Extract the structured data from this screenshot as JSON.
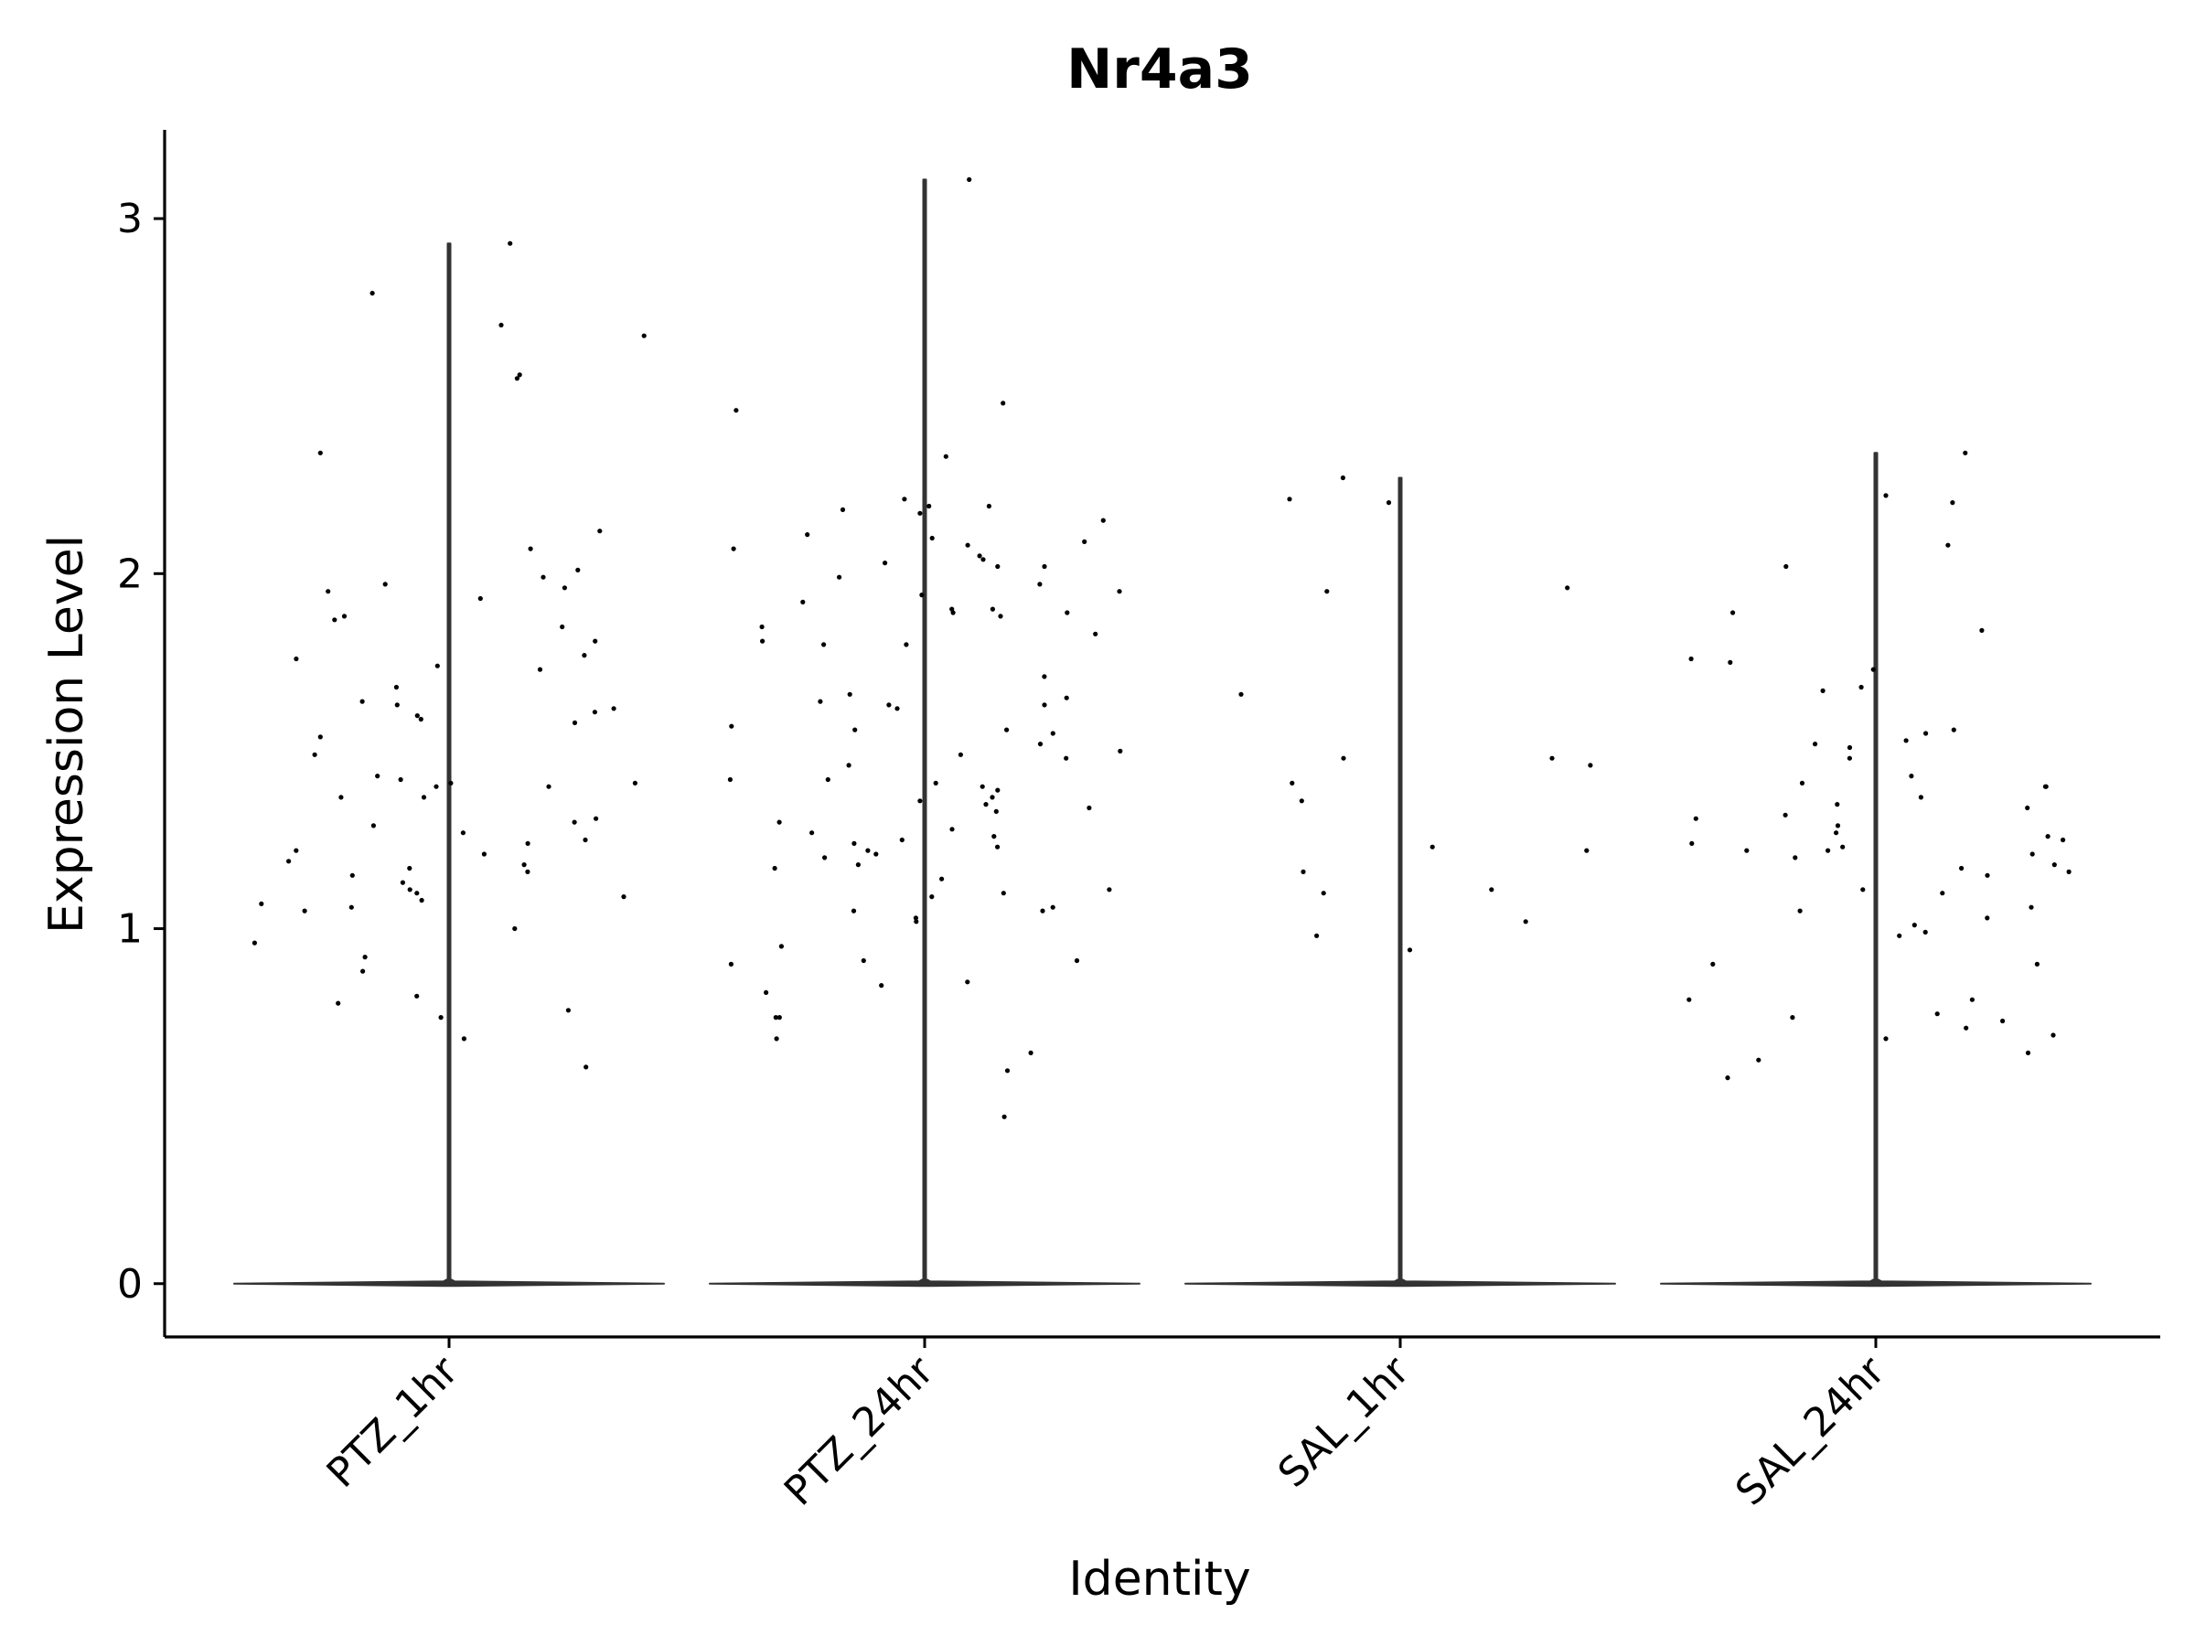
{
  "chart_data": {
    "type": "violin",
    "title": "Nr4a3",
    "xlabel": "Identity",
    "ylabel": "Expression Level",
    "categories": [
      "PTZ_1hr",
      "PTZ_24hr",
      "SAL_1hr",
      "SAL_24hr"
    ],
    "ylim": [
      -0.15,
      3.25
    ],
    "yticks": [
      0,
      1,
      2,
      3
    ],
    "grid": false,
    "legend": "none",
    "colors": {
      "ink": "#000000",
      "violin": "#333333"
    },
    "max_values": [
      2.93,
      3.11,
      2.27,
      2.34
    ],
    "points": [
      {
        "category": "PTZ_1hr",
        "values": [
          2.93,
          2.79,
          2.7,
          2.67,
          2.56,
          2.55,
          2.34,
          2.12,
          2.07,
          2.01,
          1.99,
          1.97,
          1.96,
          1.95,
          1.93,
          1.88,
          1.87,
          1.85,
          1.81,
          1.77,
          1.76,
          1.74,
          1.73,
          1.68,
          1.64,
          1.63,
          1.62,
          1.61,
          1.6,
          1.59,
          1.58,
          1.54,
          1.49,
          1.43,
          1.42,
          1.41,
          1.41,
          1.4,
          1.4,
          1.37,
          1.37,
          1.31,
          1.3,
          1.29,
          1.27,
          1.25,
          1.24,
          1.22,
          1.21,
          1.19,
          1.18,
          1.17,
          1.16,
          1.15,
          1.13,
          1.11,
          1.1,
          1.09,
          1.08,
          1.07,
          1.06,
          1.05,
          1.0,
          0.96,
          0.92,
          0.88,
          0.81,
          0.79,
          0.77,
          0.75,
          0.69,
          0.61
        ]
      },
      {
        "category": "PTZ_24hr",
        "values": [
          3.11,
          2.48,
          2.46,
          2.33,
          2.21,
          2.19,
          2.19,
          2.18,
          2.17,
          2.15,
          2.11,
          2.1,
          2.09,
          2.08,
          2.07,
          2.05,
          2.04,
          2.03,
          2.02,
          2.02,
          1.99,
          1.97,
          1.95,
          1.94,
          1.92,
          1.9,
          1.9,
          1.89,
          1.89,
          1.88,
          1.85,
          1.83,
          1.81,
          1.8,
          1.8,
          1.71,
          1.66,
          1.65,
          1.64,
          1.63,
          1.63,
          1.62,
          1.57,
          1.56,
          1.56,
          1.55,
          1.52,
          1.5,
          1.49,
          1.48,
          1.46,
          1.42,
          1.42,
          1.41,
          1.4,
          1.39,
          1.37,
          1.36,
          1.35,
          1.34,
          1.33,
          1.3,
          1.28,
          1.27,
          1.26,
          1.25,
          1.24,
          1.23,
          1.22,
          1.21,
          1.2,
          1.18,
          1.17,
          1.14,
          1.11,
          1.1,
          1.09,
          1.06,
          1.05,
          1.05,
          1.03,
          1.02,
          0.95,
          0.91,
          0.91,
          0.9,
          0.85,
          0.84,
          0.82,
          0.75,
          0.75,
          0.69,
          0.65,
          0.6,
          0.47
        ]
      },
      {
        "category": "SAL_1hr",
        "values": [
          2.27,
          2.21,
          2.2,
          1.96,
          1.95,
          1.66,
          1.48,
          1.48,
          1.46,
          1.41,
          1.36,
          1.23,
          1.22,
          1.16,
          1.11,
          1.1,
          1.02,
          0.98,
          0.94
        ]
      },
      {
        "category": "SAL_24hr",
        "values": [
          2.34,
          2.22,
          2.2,
          2.08,
          2.02,
          1.89,
          1.84,
          1.76,
          1.75,
          1.73,
          1.68,
          1.67,
          1.56,
          1.55,
          1.53,
          1.52,
          1.51,
          1.48,
          1.43,
          1.41,
          1.4,
          1.4,
          1.37,
          1.35,
          1.34,
          1.32,
          1.31,
          1.29,
          1.27,
          1.26,
          1.25,
          1.24,
          1.23,
          1.22,
          1.22,
          1.21,
          1.2,
          1.18,
          1.17,
          1.16,
          1.15,
          1.11,
          1.1,
          1.06,
          1.05,
          1.03,
          1.01,
          0.99,
          0.98,
          0.9,
          0.9,
          0.8,
          0.8,
          0.76,
          0.75,
          0.74,
          0.72,
          0.7,
          0.69,
          0.65,
          0.63,
          0.58
        ]
      }
    ]
  }
}
